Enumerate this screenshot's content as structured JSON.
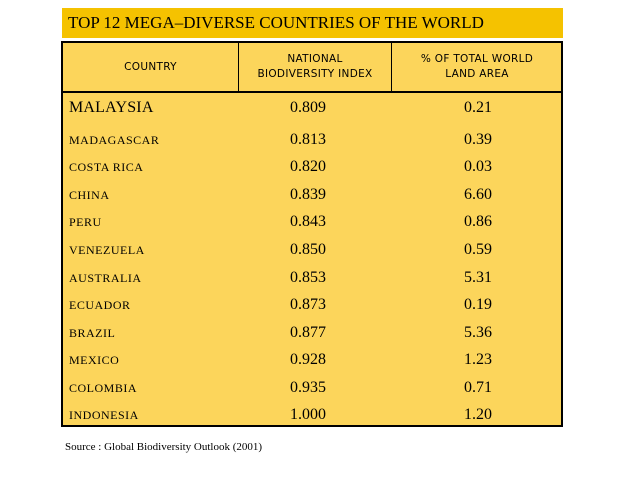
{
  "title": "TOP 12 MEGA–DIVERSE COUNTRIES OF THE WORLD",
  "table": {
    "headers": {
      "country": "COUNTRY",
      "nbi_line1": "NATIONAL",
      "nbi_line2": "BIODIVERSITY INDEX",
      "area_line1": "% OF TOTAL WORLD",
      "area_line2": "LAND AREA"
    },
    "rows": [
      {
        "country": "MALAYSIA",
        "nbi": "0.809",
        "area": "0.21"
      },
      {
        "country": "MADAGASCAR",
        "nbi": "0.813",
        "area": "0.39"
      },
      {
        "country": "COSTA RICA",
        "nbi": "0.820",
        "area": "0.03"
      },
      {
        "country": "CHINA",
        "nbi": "0.839",
        "area": "6.60"
      },
      {
        "country": "PERU",
        "nbi": "0.843",
        "area": "0.86"
      },
      {
        "country": "VENEZUELA",
        "nbi": "0.850",
        "area": "0.59"
      },
      {
        "country": "AUSTRALIA",
        "nbi": "0.853",
        "area": "5.31"
      },
      {
        "country": "ECUADOR",
        "nbi": "0.873",
        "area": "0.19"
      },
      {
        "country": "BRAZIL",
        "nbi": "0.877",
        "area": "5.36"
      },
      {
        "country": "MEXICO",
        "nbi": "0.928",
        "area": "1.23"
      },
      {
        "country": "COLOMBIA",
        "nbi": "0.935",
        "area": "0.71"
      },
      {
        "country": "INDONESIA",
        "nbi": "1.000",
        "area": "1.20"
      }
    ]
  },
  "source": "Source : Global Biodiversity Outlook (2001)",
  "colors": {
    "title_background": "#f5c200",
    "table_background": "#fcd55b"
  }
}
